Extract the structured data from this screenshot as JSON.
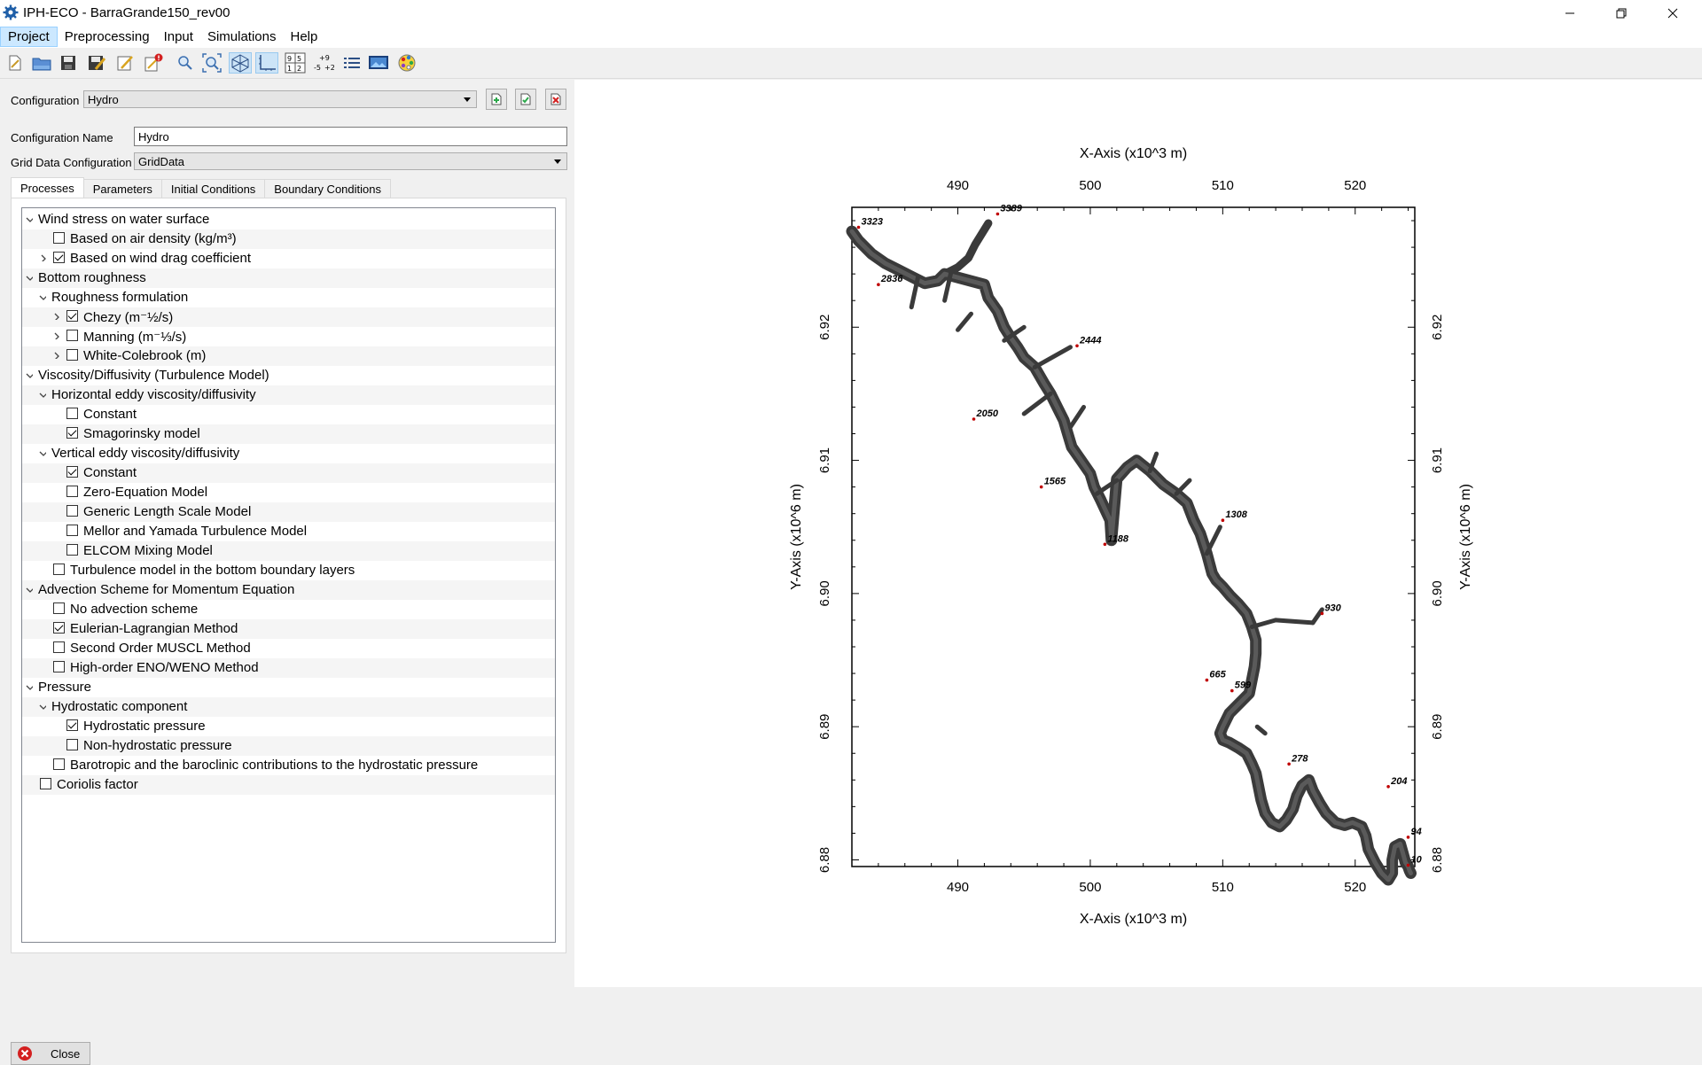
{
  "window": {
    "title": "IPH-ECO - BarraGrande150_rev00"
  },
  "menu": [
    "Project",
    "Preprocessing",
    "Input",
    "Simulations",
    "Help"
  ],
  "toolbar": {
    "icons": [
      "new-file-icon",
      "open-folder-icon",
      "save-icon",
      "save-as-icon",
      "edit-icon",
      "delete-file-icon",
      "zoom-icon",
      "zoom-extent-icon",
      "mesh-icon",
      "axes-icon",
      "cell-numbers-icon",
      "scale-numbers-icon",
      "list-icon",
      "image-icon",
      "palette-icon"
    ]
  },
  "config": {
    "configuration_label": "Configuration",
    "configuration_value": "Hydro",
    "name_label": "Configuration Name",
    "name_value": "Hydro",
    "grid_label": "Grid Data Configuration",
    "grid_value": "GridData"
  },
  "tabs": [
    "Processes",
    "Parameters",
    "Initial Conditions",
    "Boundary Conditions"
  ],
  "tree": [
    {
      "level": 0,
      "expander": "open",
      "checkbox": null,
      "label": "Wind stress on water surface"
    },
    {
      "level": 1,
      "expander": null,
      "checkbox": false,
      "label": "Based on air density (kg/m³)"
    },
    {
      "level": 1,
      "expander": "closed",
      "checkbox": true,
      "label": "Based on wind drag coefficient"
    },
    {
      "level": 0,
      "expander": "open",
      "checkbox": null,
      "label": "Bottom roughness"
    },
    {
      "level": 1,
      "expander": "open",
      "checkbox": null,
      "label": "Roughness formulation"
    },
    {
      "level": 2,
      "expander": "closed",
      "checkbox": true,
      "label": "Chezy (m⁻½/s)"
    },
    {
      "level": 2,
      "expander": "closed",
      "checkbox": false,
      "label": "Manning (m⁻⅓/s)"
    },
    {
      "level": 2,
      "expander": "closed",
      "checkbox": false,
      "label": "White-Colebrook (m)"
    },
    {
      "level": 0,
      "expander": "open",
      "checkbox": null,
      "label": "Viscosity/Diffusivity (Turbulence Model)"
    },
    {
      "level": 1,
      "expander": "open",
      "checkbox": null,
      "label": "Horizontal eddy viscosity/diffusivity"
    },
    {
      "level": 2,
      "expander": null,
      "checkbox": false,
      "label": "Constant"
    },
    {
      "level": 2,
      "expander": null,
      "checkbox": true,
      "label": "Smagorinsky model"
    },
    {
      "level": 1,
      "expander": "open",
      "checkbox": null,
      "label": "Vertical eddy viscosity/diffusivity"
    },
    {
      "level": 2,
      "expander": null,
      "checkbox": true,
      "label": "Constant"
    },
    {
      "level": 2,
      "expander": null,
      "checkbox": false,
      "label": "Zero-Equation Model"
    },
    {
      "level": 2,
      "expander": null,
      "checkbox": false,
      "label": "Generic Length Scale Model"
    },
    {
      "level": 2,
      "expander": null,
      "checkbox": false,
      "label": "Mellor and Yamada Turbulence Model"
    },
    {
      "level": 2,
      "expander": null,
      "checkbox": false,
      "label": "ELCOM Mixing Model"
    },
    {
      "level": 1,
      "expander": null,
      "checkbox": false,
      "label": "Turbulence model in the bottom boundary layers"
    },
    {
      "level": 0,
      "expander": "open",
      "checkbox": null,
      "label": "Advection Scheme for Momentum Equation"
    },
    {
      "level": 1,
      "expander": null,
      "checkbox": false,
      "label": "No advection scheme"
    },
    {
      "level": 1,
      "expander": null,
      "checkbox": true,
      "label": "Eulerian-Lagrangian Method"
    },
    {
      "level": 1,
      "expander": null,
      "checkbox": false,
      "label": "Second Order MUSCL Method"
    },
    {
      "level": 1,
      "expander": null,
      "checkbox": false,
      "label": "High-order ENO/WENO Method"
    },
    {
      "level": 0,
      "expander": "open",
      "checkbox": null,
      "label": "Pressure"
    },
    {
      "level": 1,
      "expander": "open",
      "checkbox": null,
      "label": "Hydrostatic component"
    },
    {
      "level": 2,
      "expander": null,
      "checkbox": true,
      "label": "Hydrostatic pressure"
    },
    {
      "level": 2,
      "expander": null,
      "checkbox": false,
      "label": "Non-hydrostatic pressure"
    },
    {
      "level": 1,
      "expander": null,
      "checkbox": false,
      "label": "Barotropic and the baroclinic contributions to the hydrostatic pressure"
    },
    {
      "level": 0,
      "expander": null,
      "checkbox": false,
      "label": "Coriolis factor"
    }
  ],
  "close_label": "Close",
  "plot": {
    "x_axis_title": "X-Axis (x10^3 m)",
    "y_axis_title": "Y-Axis (x10^6 m)",
    "x_ticks": [
      "490",
      "500",
      "510",
      "520"
    ],
    "y_ticks": [
      "6.92",
      "6.91",
      "6.90",
      "6.89",
      "6.88"
    ],
    "node_labels": [
      "3389",
      "3323",
      "2836",
      "2444",
      "2050",
      "1565",
      "1308",
      "1188",
      "930",
      "665",
      "599",
      "278",
      "204",
      "94",
      "10"
    ]
  },
  "chart_data": {
    "type": "scatter",
    "title": "",
    "xlabel": "X-Axis (x10^3 m)",
    "ylabel": "Y-Axis (x10^6 m)",
    "xlim": [
      482,
      524.5
    ],
    "ylim": [
      6.8795,
      6.929
    ],
    "grid": false,
    "series": [
      {
        "x": [
          482.0,
          482.5,
          483.5,
          484.5,
          485.5,
          486.5,
          487.5,
          488.5,
          489.0,
          490.0,
          490.8,
          491.3,
          491.8,
          492.3,
          492.0,
          492.3,
          493.0,
          493.5,
          494.0,
          494.5,
          495.0,
          495.8,
          496.5,
          497.0,
          497.5,
          498.0,
          498.3,
          498.6,
          499.3,
          500.0,
          500.3,
          500.8,
          501.5,
          501.6,
          502.0,
          502.8,
          503.5,
          504.5,
          505.5,
          506.5,
          507.3,
          507.8,
          508.3,
          508.8,
          509.2,
          509.5,
          510.0,
          510.6,
          511.2,
          511.8,
          512.2,
          512.5,
          512.5,
          512.4,
          512.2,
          512.0,
          511.5,
          511.0,
          510.5,
          510.0,
          509.8,
          510.0,
          510.5,
          511.2,
          511.8,
          512.2,
          512.5,
          512.7,
          512.9,
          513.2,
          513.7,
          514.3,
          514.8,
          515.3,
          515.6,
          516.0,
          516.5,
          516.8,
          517.3,
          517.8,
          518.5,
          519.2,
          519.8,
          520.5,
          520.8,
          521.0,
          521.5,
          522.0,
          522.5,
          522.8,
          522.8,
          523.0,
          523.4,
          523.6,
          523.8,
          524.0,
          524.1,
          524.2
        ],
        "y": [
          6.9272,
          6.9265,
          6.9255,
          6.9248,
          6.9243,
          6.9238,
          6.9233,
          6.9235,
          6.924,
          6.9245,
          6.9252,
          6.9262,
          6.927,
          6.9278,
          6.9232,
          6.9222,
          6.9212,
          6.92,
          6.9192,
          6.9185,
          6.9177,
          6.917,
          6.9158,
          6.915,
          6.914,
          6.913,
          6.912,
          6.911,
          6.91,
          6.909,
          6.908,
          6.907,
          6.9055,
          6.904,
          6.9086,
          6.9095,
          6.91,
          6.9092,
          6.9082,
          6.9075,
          6.9068,
          6.9055,
          6.9045,
          6.903,
          6.9015,
          6.901,
          6.9005,
          6.8998,
          6.8992,
          6.8985,
          6.8975,
          6.8965,
          6.8955,
          6.8945,
          6.8935,
          6.8925,
          6.892,
          6.8915,
          6.891,
          6.89,
          6.8895,
          6.889,
          6.8888,
          6.8884,
          6.888,
          6.8872,
          6.8865,
          6.8855,
          6.8845,
          6.8835,
          6.8828,
          6.8825,
          6.883,
          6.8838,
          6.8848,
          6.8856,
          6.886,
          6.8852,
          6.8843,
          6.8835,
          6.8828,
          6.8826,
          6.8828,
          6.8825,
          6.8818,
          6.8808,
          6.8798,
          6.879,
          6.8785,
          6.879,
          6.88,
          6.881,
          6.8812,
          6.8805,
          6.8798,
          6.8795,
          6.8792,
          6.879
        ]
      }
    ],
    "annotations": [
      {
        "text": "3389",
        "x": 493.0,
        "y": 6.9285
      },
      {
        "text": "3323",
        "x": 482.5,
        "y": 6.9275
      },
      {
        "text": "2836",
        "x": 484.0,
        "y": 6.9232
      },
      {
        "text": "2444",
        "x": 499.0,
        "y": 6.9186
      },
      {
        "text": "2050",
        "x": 491.2,
        "y": 6.9131
      },
      {
        "text": "1565",
        "x": 496.3,
        "y": 6.908
      },
      {
        "text": "1308",
        "x": 510.0,
        "y": 6.9055
      },
      {
        "text": "1188",
        "x": 501.1,
        "y": 6.9037
      },
      {
        "text": "930",
        "x": 517.5,
        "y": 6.8985
      },
      {
        "text": "665",
        "x": 508.8,
        "y": 6.8935
      },
      {
        "text": "599",
        "x": 510.7,
        "y": 6.8927
      },
      {
        "text": "278",
        "x": 515.0,
        "y": 6.8872
      },
      {
        "text": "204",
        "x": 522.5,
        "y": 6.8855
      },
      {
        "text": "94",
        "x": 524.0,
        "y": 6.8817
      },
      {
        "text": "10",
        "x": 524.0,
        "y": 6.8796
      }
    ]
  }
}
